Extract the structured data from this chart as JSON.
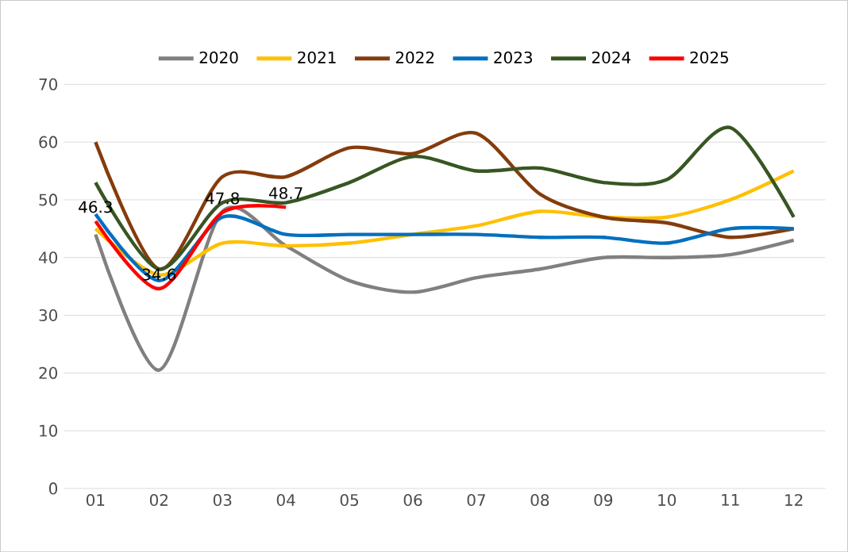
{
  "chart_data": {
    "type": "line",
    "categories": [
      "01",
      "02",
      "03",
      "04",
      "05",
      "06",
      "07",
      "08",
      "09",
      "10",
      "11",
      "12"
    ],
    "series": [
      {
        "name": "2020",
        "color": "#808080",
        "values": [
          44,
          20.5,
          48,
          42,
          36,
          34,
          36.5,
          38,
          40,
          40,
          40.5,
          43
        ]
      },
      {
        "name": "2021",
        "color": "#ffc000",
        "values": [
          45,
          37,
          42.5,
          42,
          42.5,
          44,
          45.5,
          48,
          47,
          47,
          50,
          55
        ]
      },
      {
        "name": "2022",
        "color": "#843c0c",
        "values": [
          60,
          38,
          54,
          54,
          59,
          58,
          61.5,
          51,
          47,
          46,
          43.5,
          45
        ]
      },
      {
        "name": "2023",
        "color": "#0070c0",
        "values": [
          47.5,
          36,
          47,
          44,
          44,
          44,
          44,
          43.5,
          43.5,
          42.5,
          45,
          45
        ]
      },
      {
        "name": "2024",
        "color": "#375623",
        "values": [
          53,
          38,
          49.5,
          49.5,
          53,
          57.5,
          55,
          55.5,
          53,
          53.5,
          62.5,
          47
        ]
      },
      {
        "name": "2025",
        "color": "#ff0000",
        "values": [
          46.3,
          34.6,
          47.8,
          48.7,
          null,
          null,
          null,
          null,
          null,
          null,
          null,
          null
        ],
        "value_labels": [
          "46.3",
          "34.6",
          "47.8",
          "48.7",
          null,
          null,
          null,
          null,
          null,
          null,
          null,
          null
        ]
      }
    ],
    "ylim": [
      0,
      70
    ],
    "yticks": [
      0,
      10,
      20,
      30,
      40,
      50,
      60,
      70
    ],
    "grid": "y",
    "legend": "top",
    "marker": "none",
    "line_style": "solid"
  }
}
